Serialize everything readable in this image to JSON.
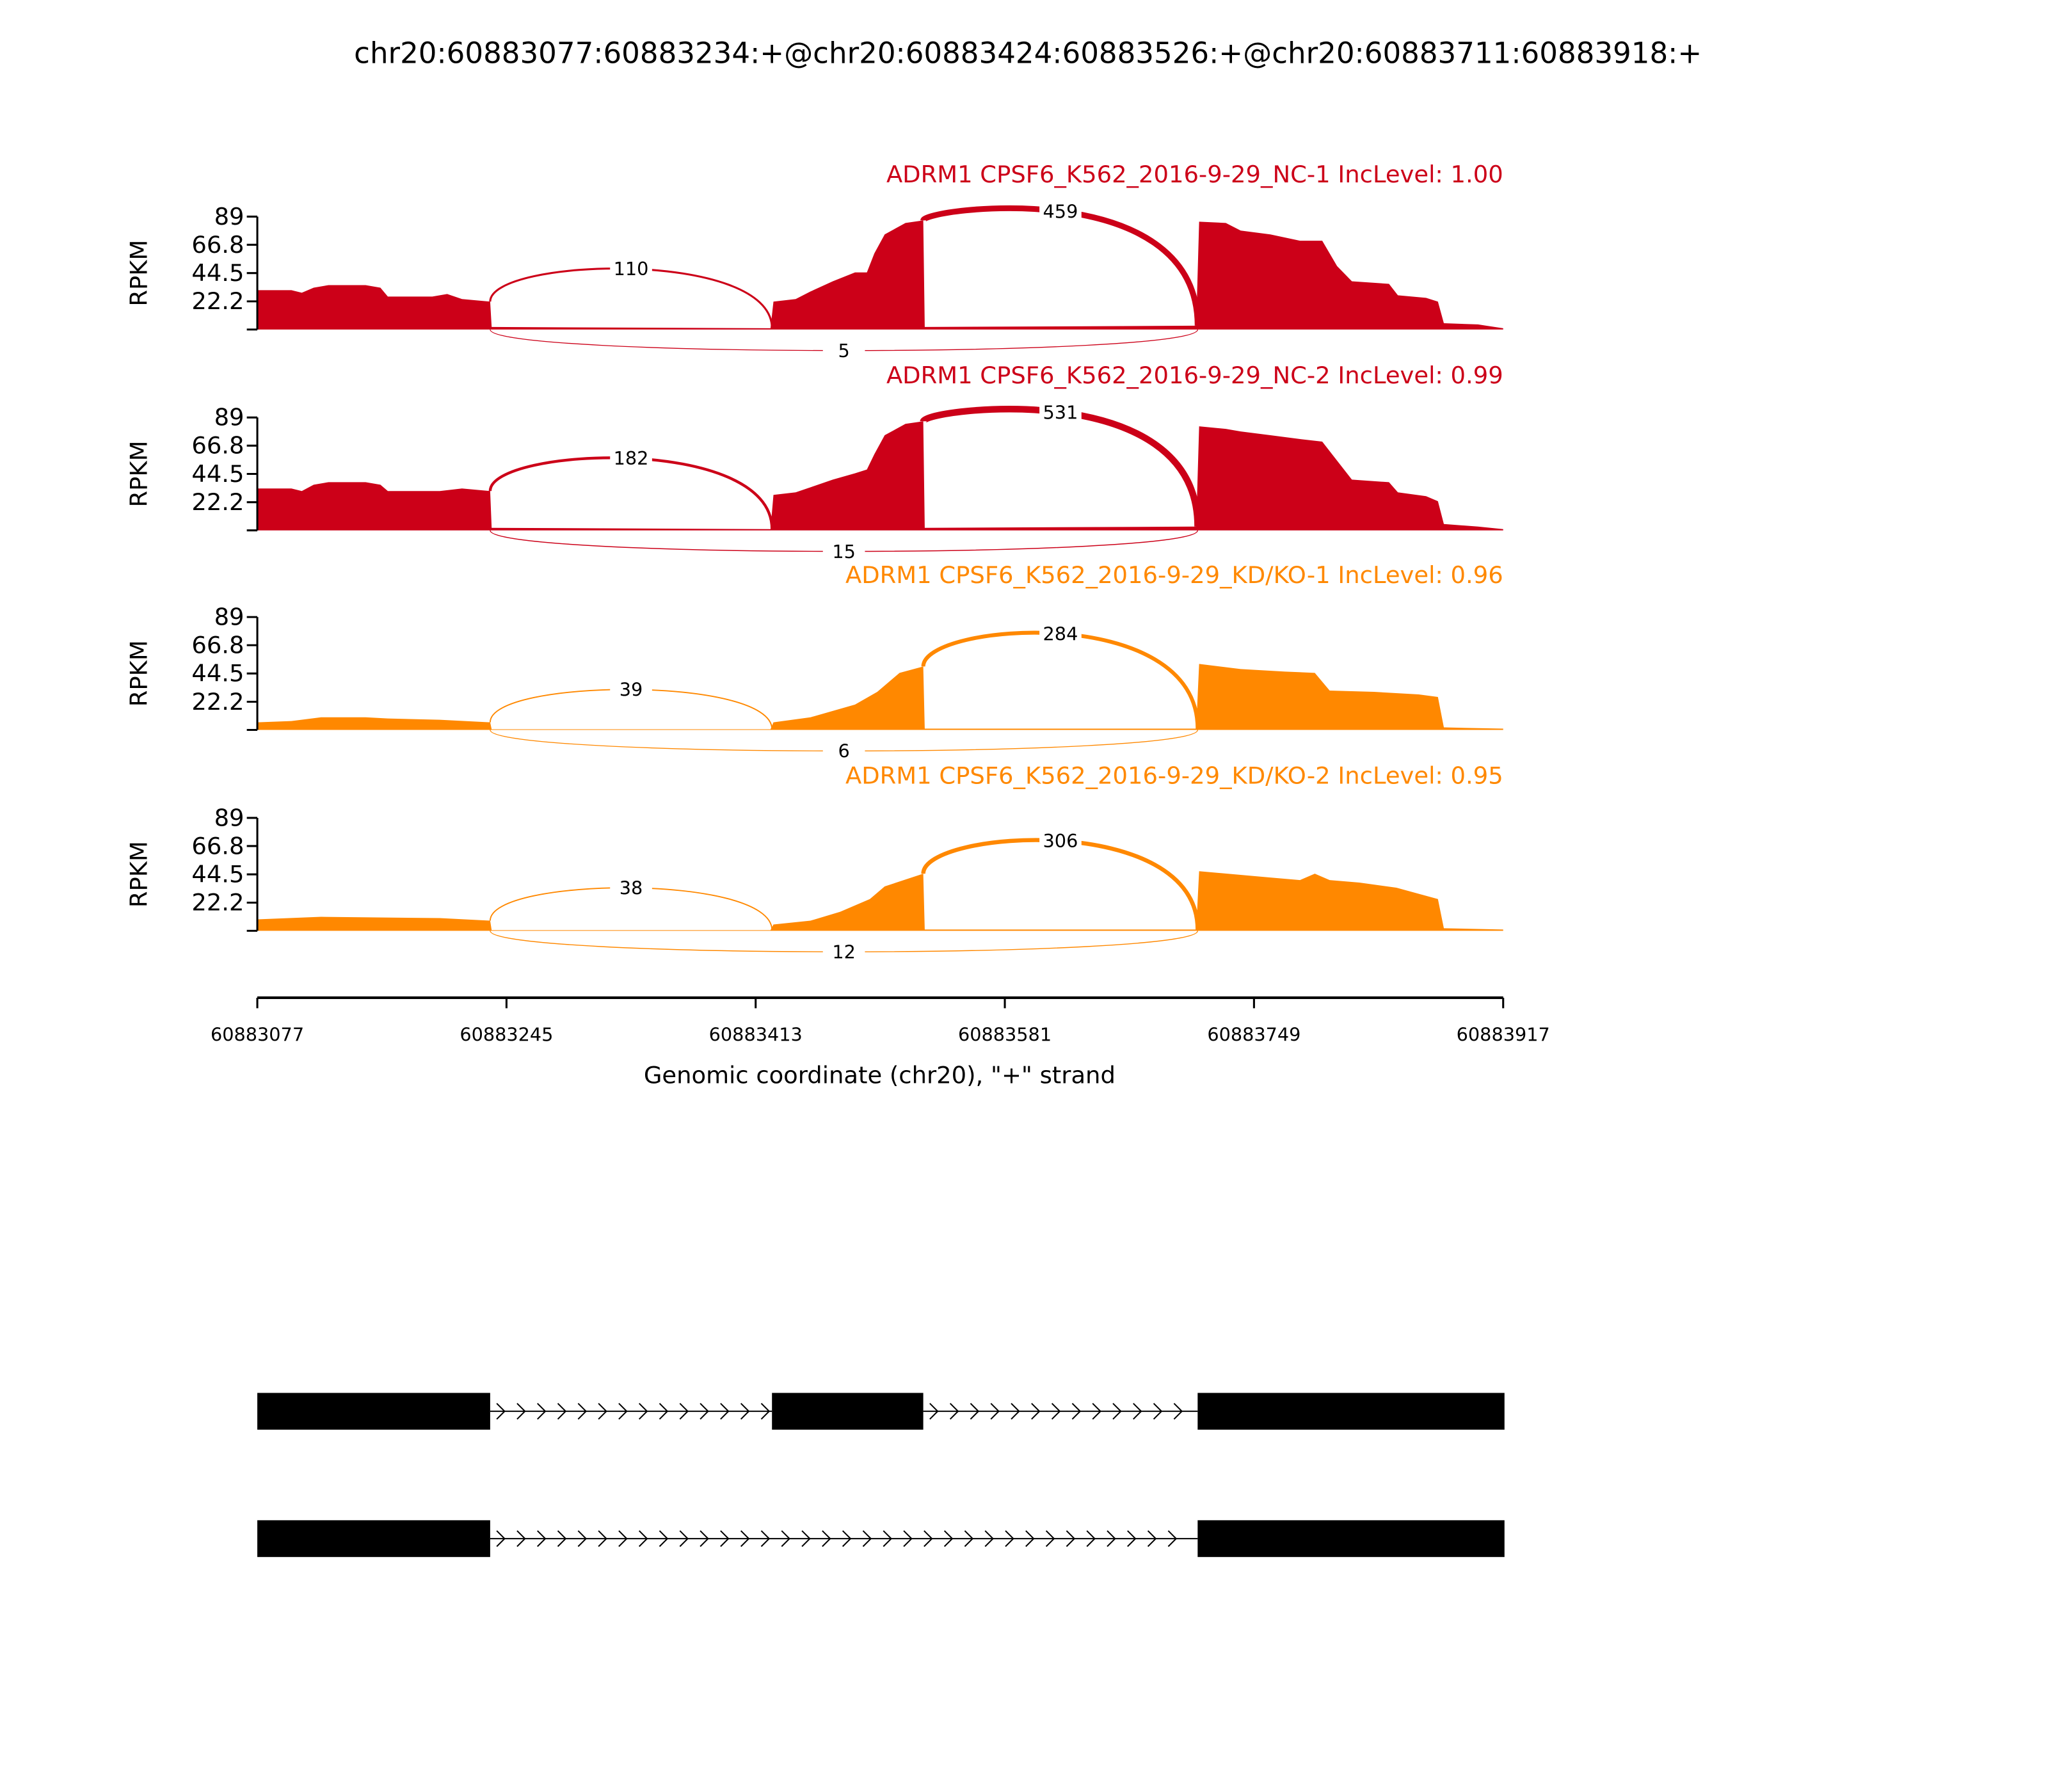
{
  "chart_data": {
    "type": "area",
    "title": "chr20:60883077:60883234:+@chr20:60883424:60883526:+@chr20:60883711:60883918:+",
    "xlabel": "Genomic coordinate (chr20), \"+\" strand",
    "ylabel": "RPKM",
    "xlim": [
      60883077,
      60883917
    ],
    "xticks": [
      "60883077",
      "60883245",
      "60883413",
      "60883581",
      "60883749",
      "60883917"
    ],
    "ylim": [
      0,
      89
    ],
    "yticks": [
      "22.2",
      "44.5",
      "66.8",
      "89"
    ],
    "exons": [
      [
        60883077,
        60883234
      ],
      [
        60883424,
        60883526
      ],
      [
        60883711,
        60883918
      ]
    ],
    "samples": [
      {
        "title": "ADRM1 CPSF6_K562_2016-9-29_NC-1 IncLevel: 1.00",
        "color": "#cc0018",
        "coverage": [
          [
            60883077,
            31
          ],
          [
            60883100,
            31
          ],
          [
            60883107,
            29
          ],
          [
            60883115,
            33
          ],
          [
            60883125,
            35
          ],
          [
            60883150,
            35
          ],
          [
            60883160,
            33
          ],
          [
            60883165,
            26
          ],
          [
            60883195,
            26
          ],
          [
            60883205,
            28
          ],
          [
            60883215,
            24
          ],
          [
            60883234,
            22
          ],
          [
            60883235,
            2
          ],
          [
            60883423,
            1
          ],
          [
            60883425,
            22
          ],
          [
            60883440,
            24
          ],
          [
            60883450,
            30
          ],
          [
            60883465,
            38
          ],
          [
            60883480,
            45
          ],
          [
            60883488,
            45
          ],
          [
            60883493,
            60
          ],
          [
            60883500,
            75
          ],
          [
            60883514,
            84
          ],
          [
            60883526,
            86
          ],
          [
            60883527,
            2
          ],
          [
            60883710,
            3
          ],
          [
            60883712,
            85
          ],
          [
            60883730,
            84
          ],
          [
            60883740,
            78
          ],
          [
            60883760,
            75
          ],
          [
            60883780,
            70
          ],
          [
            60883795,
            70
          ],
          [
            60883805,
            50
          ],
          [
            60883815,
            38
          ],
          [
            60883840,
            36
          ],
          [
            60883846,
            27
          ],
          [
            60883865,
            25
          ],
          [
            60883873,
            22
          ],
          [
            60883877,
            5
          ],
          [
            60883900,
            4
          ],
          [
            60883917,
            1
          ]
        ],
        "junctions": [
          {
            "start": 60883234,
            "end": 60883424,
            "count": "110",
            "side": "above"
          },
          {
            "start": 60883526,
            "end": 60883711,
            "count": "459",
            "side": "above"
          },
          {
            "start": 60883234,
            "end": 60883711,
            "count": "5",
            "side": "below"
          }
        ]
      },
      {
        "title": "ADRM1 CPSF6_K562_2016-9-29_NC-2 IncLevel: 0.99",
        "color": "#cc0018",
        "coverage": [
          [
            60883077,
            33
          ],
          [
            60883100,
            33
          ],
          [
            60883107,
            31
          ],
          [
            60883115,
            36
          ],
          [
            60883125,
            38
          ],
          [
            60883150,
            38
          ],
          [
            60883160,
            36
          ],
          [
            60883165,
            31
          ],
          [
            60883200,
            31
          ],
          [
            60883215,
            33
          ],
          [
            60883234,
            31
          ],
          [
            60883235,
            2
          ],
          [
            60883423,
            1
          ],
          [
            60883425,
            28
          ],
          [
            60883440,
            30
          ],
          [
            60883450,
            34
          ],
          [
            60883465,
            40
          ],
          [
            60883480,
            45
          ],
          [
            60883488,
            48
          ],
          [
            60883493,
            60
          ],
          [
            60883500,
            75
          ],
          [
            60883514,
            84
          ],
          [
            60883526,
            86
          ],
          [
            60883527,
            2
          ],
          [
            60883710,
            3
          ],
          [
            60883712,
            82
          ],
          [
            60883730,
            80
          ],
          [
            60883740,
            78
          ],
          [
            60883760,
            75
          ],
          [
            60883780,
            72
          ],
          [
            60883795,
            70
          ],
          [
            60883805,
            55
          ],
          [
            60883815,
            40
          ],
          [
            60883840,
            38
          ],
          [
            60883846,
            30
          ],
          [
            60883865,
            27
          ],
          [
            60883873,
            23
          ],
          [
            60883877,
            5
          ],
          [
            60883900,
            3
          ],
          [
            60883917,
            1
          ]
        ],
        "junctions": [
          {
            "start": 60883234,
            "end": 60883424,
            "count": "182",
            "side": "above"
          },
          {
            "start": 60883526,
            "end": 60883711,
            "count": "531",
            "side": "above"
          },
          {
            "start": 60883234,
            "end": 60883711,
            "count": "15",
            "side": "below"
          }
        ]
      },
      {
        "title": "ADRM1 CPSF6_K562_2016-9-29_KD/KO-1 IncLevel: 0.96",
        "color": "#ff8800",
        "coverage": [
          [
            60883077,
            6
          ],
          [
            60883100,
            7
          ],
          [
            60883120,
            10
          ],
          [
            60883150,
            10
          ],
          [
            60883165,
            9
          ],
          [
            60883200,
            8
          ],
          [
            60883234,
            6
          ],
          [
            60883235,
            0.5
          ],
          [
            60883423,
            0.5
          ],
          [
            60883425,
            6
          ],
          [
            60883450,
            10
          ],
          [
            60883480,
            20
          ],
          [
            60883495,
            30
          ],
          [
            60883510,
            45
          ],
          [
            60883526,
            50
          ],
          [
            60883527,
            1
          ],
          [
            60883710,
            1
          ],
          [
            60883712,
            52
          ],
          [
            60883740,
            48
          ],
          [
            60883770,
            46
          ],
          [
            60883790,
            45
          ],
          [
            60883800,
            31
          ],
          [
            60883830,
            30
          ],
          [
            60883860,
            28
          ],
          [
            60883873,
            26
          ],
          [
            60883877,
            2
          ],
          [
            60883917,
            1
          ]
        ],
        "junctions": [
          {
            "start": 60883234,
            "end": 60883424,
            "count": "39",
            "side": "above"
          },
          {
            "start": 60883526,
            "end": 60883711,
            "count": "284",
            "side": "above"
          },
          {
            "start": 60883234,
            "end": 60883711,
            "count": "6",
            "side": "below"
          }
        ]
      },
      {
        "title": "ADRM1 CPSF6_K562_2016-9-29_KD/KO-2 IncLevel: 0.95",
        "color": "#ff8800",
        "coverage": [
          [
            60883077,
            9
          ],
          [
            60883120,
            11
          ],
          [
            60883200,
            10
          ],
          [
            60883234,
            8
          ],
          [
            60883235,
            0.5
          ],
          [
            60883423,
            0.5
          ],
          [
            60883425,
            5
          ],
          [
            60883450,
            8
          ],
          [
            60883470,
            15
          ],
          [
            60883490,
            25
          ],
          [
            60883500,
            35
          ],
          [
            60883526,
            45
          ],
          [
            60883527,
            1
          ],
          [
            60883710,
            1
          ],
          [
            60883712,
            47
          ],
          [
            60883760,
            42
          ],
          [
            60883780,
            40
          ],
          [
            60883790,
            45
          ],
          [
            60883800,
            40
          ],
          [
            60883820,
            38
          ],
          [
            60883845,
            34
          ],
          [
            60883873,
            25
          ],
          [
            60883877,
            2
          ],
          [
            60883917,
            1
          ]
        ],
        "junctions": [
          {
            "start": 60883234,
            "end": 60883424,
            "count": "38",
            "side": "above"
          },
          {
            "start": 60883526,
            "end": 60883711,
            "count": "306",
            "side": "above"
          },
          {
            "start": 60883234,
            "end": 60883711,
            "count": "12",
            "side": "below"
          }
        ]
      }
    ],
    "gene_models": [
      {
        "exons": [
          [
            60883077,
            60883234
          ],
          [
            60883424,
            60883526
          ],
          [
            60883711,
            60883918
          ]
        ]
      },
      {
        "exons": [
          [
            60883077,
            60883234
          ],
          [
            60883711,
            60883918
          ]
        ]
      }
    ]
  }
}
